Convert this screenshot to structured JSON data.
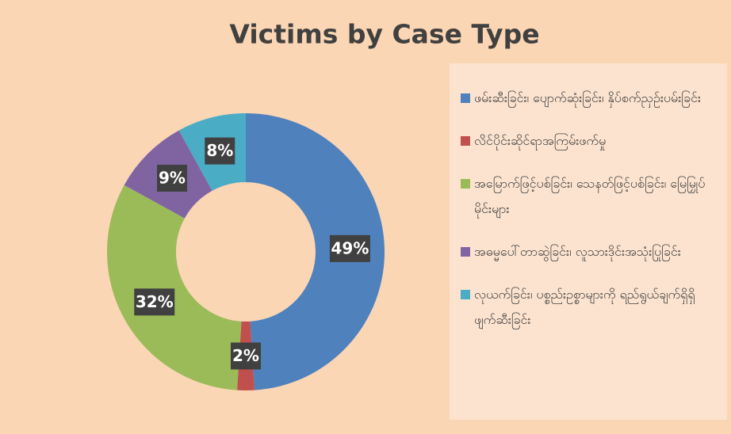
{
  "chart_data": {
    "type": "donut",
    "title": "Victims by Case Type",
    "categories": [
      "ဖမ်းဆီးခြင်း၊ ပျောက်ဆုံးခြင်း၊ နှိပ်စက်ညှဉ်းပမ်းခြင်း",
      "လိင်ပိုင်းဆိုင်ရာအကြမ်းဖက်မှု",
      "အမြောက်ဖြင့်ပစ်ခြင်း၊ သေနတ်ဖြင့်ပစ်ခြင်း၊ မြေမြှုပ်မိုင်းများ",
      "အဓမ္မပေါ်တာဆွဲခြင်း၊ လူသားဒိုင်းအသုံးပြုခြင်း",
      "လုယက်ခြင်း၊ ပစ္စည်းဥစ္စာများကို ရည်ရွယ်ချက်ရှိရှိ ဖျက်ဆီးခြင်း"
    ],
    "values": [
      49,
      2,
      32,
      9,
      8
    ],
    "value_labels": [
      "49%",
      "2%",
      "32%",
      "9%",
      "8%"
    ],
    "colors": [
      "#4f81bd",
      "#c0504d",
      "#9bbb59",
      "#8064a2",
      "#4bacc6"
    ],
    "legend": "right"
  }
}
